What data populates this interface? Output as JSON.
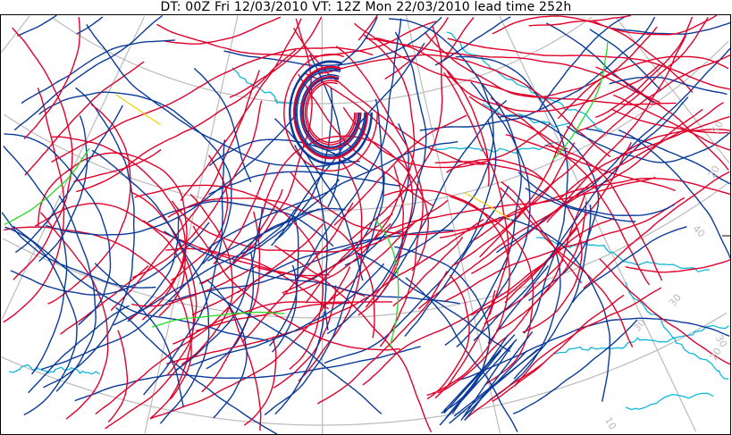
{
  "title": "DT: 00Z Fri 12/03/2010  VT: 12Z Mon 22/03/2010 lead time 252h",
  "map": {
    "type": "ensemble front spaghetti plot",
    "grid_labels": [
      "50",
      "20",
      "40",
      "30",
      "30",
      "30",
      "20",
      "10"
    ],
    "colors": {
      "warm_front": "#e0002a",
      "cold_front": "#0a3a9a",
      "coastline": "#10b8d8",
      "graticule": "#bbbbbb",
      "other_a": "#22dd22",
      "other_b": "#f0d000"
    }
  }
}
